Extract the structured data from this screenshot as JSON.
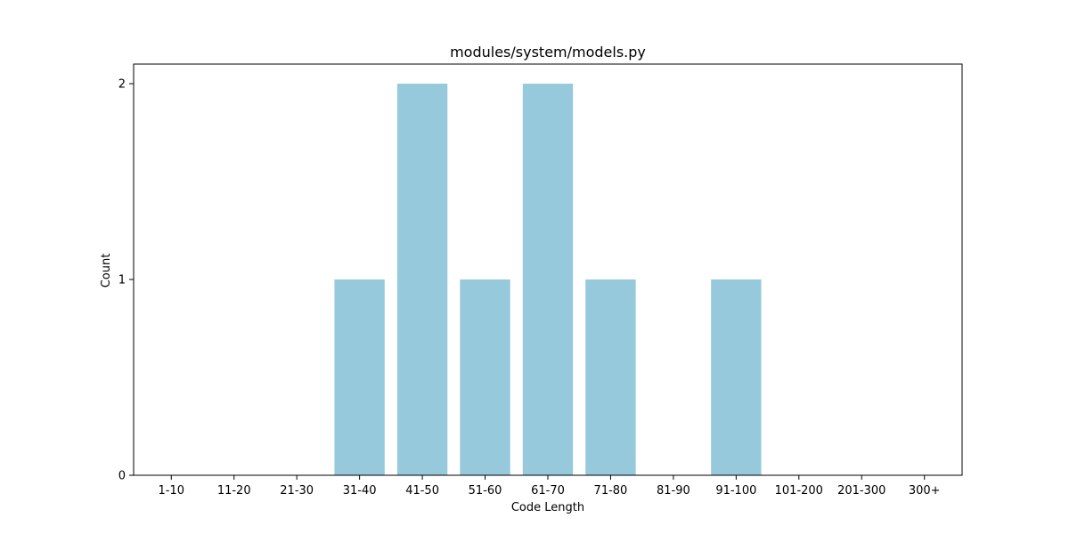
{
  "chart_data": {
    "type": "bar",
    "title": "modules/system/models.py",
    "xlabel": "Code Length",
    "ylabel": "Count",
    "categories": [
      "1-10",
      "11-20",
      "21-30",
      "31-40",
      "41-50",
      "51-60",
      "61-70",
      "71-80",
      "81-90",
      "91-100",
      "101-200",
      "201-300",
      "300+"
    ],
    "values": [
      0,
      0,
      0,
      1,
      2,
      1,
      2,
      1,
      0,
      1,
      0,
      0,
      0
    ],
    "yticks": [
      0,
      1,
      2
    ],
    "ylim": [
      0,
      2.1
    ],
    "grid": false,
    "legend": "none",
    "bar_color": "#96c9dc"
  }
}
